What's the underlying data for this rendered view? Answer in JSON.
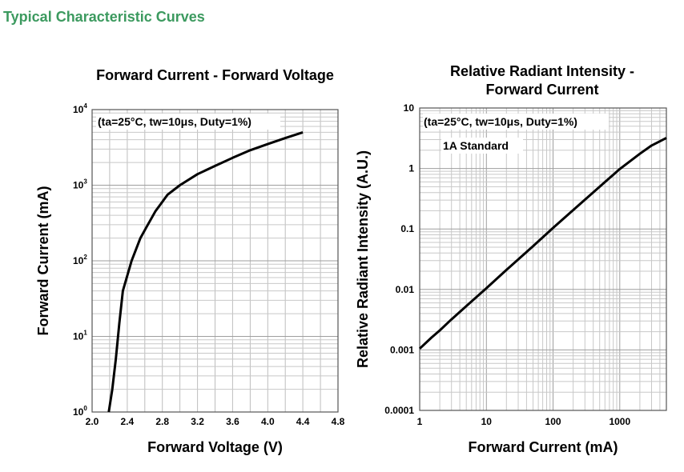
{
  "page_title": "Typical Characteristic Curves",
  "chart_data": [
    {
      "type": "line",
      "title": "Forward Current - Forward Voltage",
      "xlabel": "Forward Voltage (V)",
      "ylabel": "Forward Current (mA)",
      "annotation": "(ta=25°C, tw=10μs, Duty=1%)",
      "x_scale": "linear",
      "y_scale": "log",
      "xlim": [
        2.0,
        4.8
      ],
      "ylim": [
        1,
        10000
      ],
      "x_ticks": [
        "2.0",
        "2.4",
        "2.8",
        "3.2",
        "3.6",
        "4.0",
        "4.4",
        "4.8"
      ],
      "y_ticks": [
        {
          "base": "10",
          "exp": "0"
        },
        {
          "base": "10",
          "exp": "1"
        },
        {
          "base": "10",
          "exp": "2"
        },
        {
          "base": "10",
          "exp": "3"
        },
        {
          "base": "10",
          "exp": "4"
        }
      ],
      "grid": true,
      "series": [
        {
          "color": "#000000",
          "points": [
            [
              2.19,
              1
            ],
            [
              2.23,
              2
            ],
            [
              2.27,
              5
            ],
            [
              2.31,
              15
            ],
            [
              2.35,
              40
            ],
            [
              2.45,
              100
            ],
            [
              2.55,
              200
            ],
            [
              2.62,
              280
            ],
            [
              2.72,
              450
            ],
            [
              2.86,
              750
            ],
            [
              3.0,
              1000
            ],
            [
              3.2,
              1400
            ],
            [
              3.4,
              1800
            ],
            [
              3.6,
              2300
            ],
            [
              3.8,
              2900
            ],
            [
              4.0,
              3500
            ],
            [
              4.2,
              4200
            ],
            [
              4.4,
              5000
            ]
          ]
        }
      ]
    },
    {
      "type": "line",
      "title": [
        "Relative Radiant Intensity -",
        "Forward Current"
      ],
      "xlabel": "Forward Current (mA)",
      "ylabel": "Relative Radiant Intensity (A.U.)",
      "annotations": [
        "(ta=25°C, tw=10μs, Duty=1%)",
        "1A Standard"
      ],
      "x_scale": "log",
      "y_scale": "log",
      "xlim": [
        1,
        5000
      ],
      "ylim": [
        0.0001,
        10
      ],
      "x_ticks": [
        {
          "value": 1,
          "label": "1"
        },
        {
          "value": 10,
          "label": "10"
        },
        {
          "value": 100,
          "label": "100"
        },
        {
          "value": 1000,
          "label": "1000"
        }
      ],
      "y_ticks": [
        {
          "value": 0.0001,
          "label": "0.0001"
        },
        {
          "value": 0.001,
          "label": "0.001"
        },
        {
          "value": 0.01,
          "label": "0.01"
        },
        {
          "value": 0.1,
          "label": "0.1"
        },
        {
          "value": 1,
          "label": "1"
        },
        {
          "value": 10,
          "label": "10"
        }
      ],
      "grid": true,
      "series": [
        {
          "color": "#000000",
          "points": [
            [
              1,
              0.00105
            ],
            [
              1.5,
              0.0016
            ],
            [
              2,
              0.0021
            ],
            [
              3,
              0.0032
            ],
            [
              5,
              0.0053
            ],
            [
              10,
              0.0105
            ],
            [
              20,
              0.021
            ],
            [
              50,
              0.052
            ],
            [
              100,
              0.104
            ],
            [
              200,
              0.205
            ],
            [
              500,
              0.5
            ],
            [
              1000,
              0.98
            ],
            [
              2000,
              1.75
            ],
            [
              3000,
              2.4
            ],
            [
              5000,
              3.2
            ]
          ]
        }
      ]
    }
  ]
}
